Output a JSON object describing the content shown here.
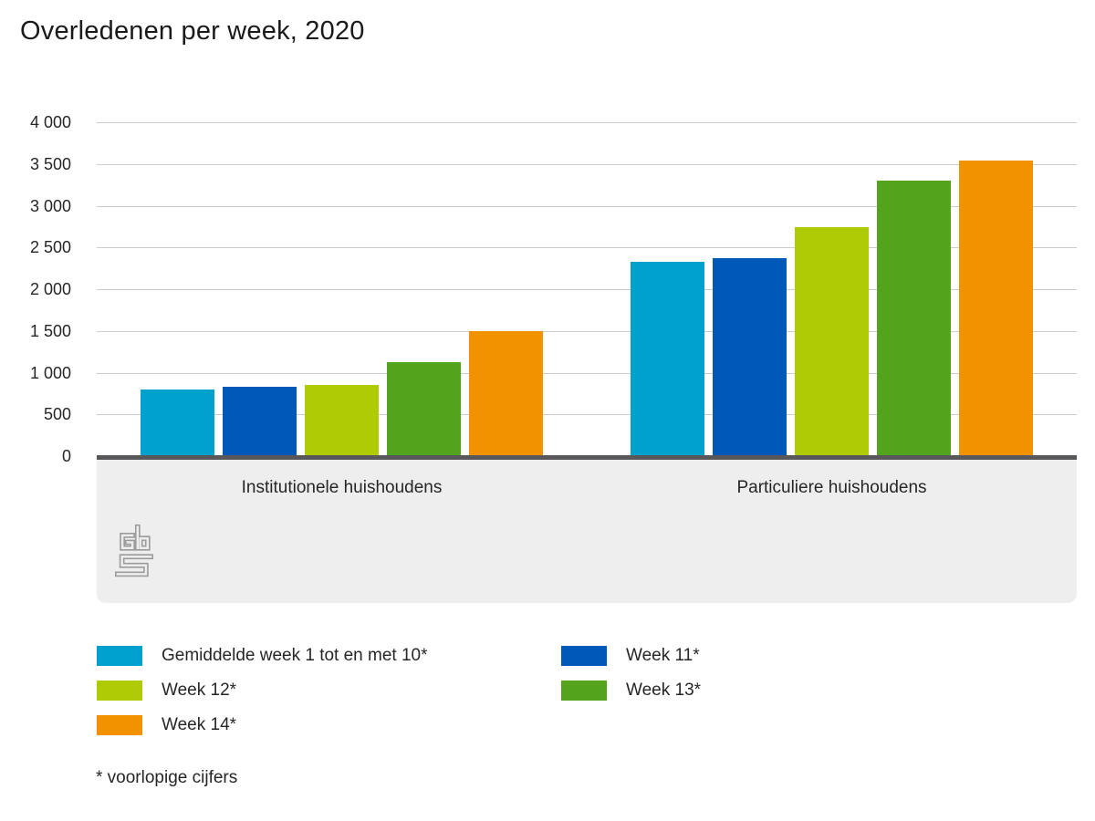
{
  "title": "Overledenen per week, 2020",
  "footnote": "* voorlopige cijfers",
  "logo": {
    "name": "cbs-logo",
    "color": "#9c9c9c"
  },
  "colors": {
    "background": "#ffffff",
    "band_background": "#eeeeee",
    "gridline": "#cccccc",
    "axis_line": "#58585a",
    "text": "#262626"
  },
  "chart_data": {
    "type": "bar",
    "title": "Overledenen per week, 2020",
    "categories": [
      "Institutionele huishoudens",
      "Particuliere huishoudens"
    ],
    "series": [
      {
        "name": "Gemiddelde week 1 tot en met 10*",
        "color": "#00a1cd",
        "values": [
          790,
          2320
        ]
      },
      {
        "name": "Week 11*",
        "color": "#0058b8",
        "values": [
          815,
          2360
        ]
      },
      {
        "name": "Week 12*",
        "color": "#afcb05",
        "values": [
          840,
          2730
        ]
      },
      {
        "name": "Week 13*",
        "color": "#53a31d",
        "values": [
          1120,
          3290
        ]
      },
      {
        "name": "Week 14*",
        "color": "#f39200",
        "values": [
          1490,
          3535
        ]
      }
    ],
    "xlabel": "",
    "ylabel": "",
    "ylim": [
      0,
      4000
    ],
    "ytick_step": 500,
    "ytick_labels": [
      "0",
      "500",
      "1 000",
      "1 500",
      "2 000",
      "2 500",
      "3 000",
      "3 500",
      "4 000"
    ],
    "grid": true,
    "legend_position": "bottom",
    "footnote": "* voorlopige cijfers"
  }
}
